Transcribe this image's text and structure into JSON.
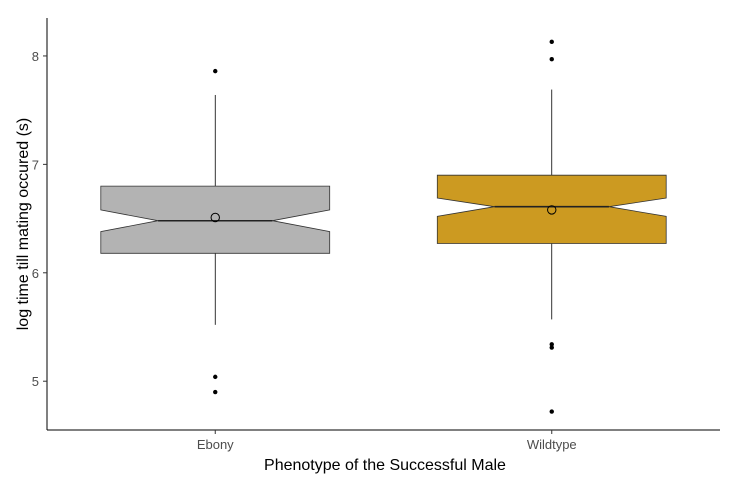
{
  "chart_data": {
    "type": "boxplot",
    "title": "",
    "xlabel": "Phenotype of the Successful Male",
    "ylabel": "log time till mating occured (s)",
    "ylim": [
      4.55,
      8.35
    ],
    "yticks": [
      5,
      6,
      7,
      8
    ],
    "grid": false,
    "legend": "none",
    "notched": true,
    "categories": [
      "Ebony",
      "Wildtype"
    ],
    "boxes": [
      {
        "category": "Ebony",
        "fill": "#b3b3b3",
        "whisker_low": 5.52,
        "q1": 6.18,
        "median": 6.48,
        "q3": 6.8,
        "whisker_high": 7.64,
        "notch_low": 6.38,
        "notch_high": 6.58,
        "mean": 6.51,
        "outliers": [
          7.86,
          5.04,
          4.9
        ]
      },
      {
        "category": "Wildtype",
        "fill": "#cc9a21",
        "whisker_low": 5.57,
        "q1": 6.27,
        "median": 6.61,
        "q3": 6.9,
        "whisker_high": 7.69,
        "notch_low": 6.52,
        "notch_high": 6.69,
        "mean": 6.58,
        "outliers": [
          8.13,
          7.97,
          5.34,
          5.31,
          4.72
        ]
      }
    ]
  }
}
